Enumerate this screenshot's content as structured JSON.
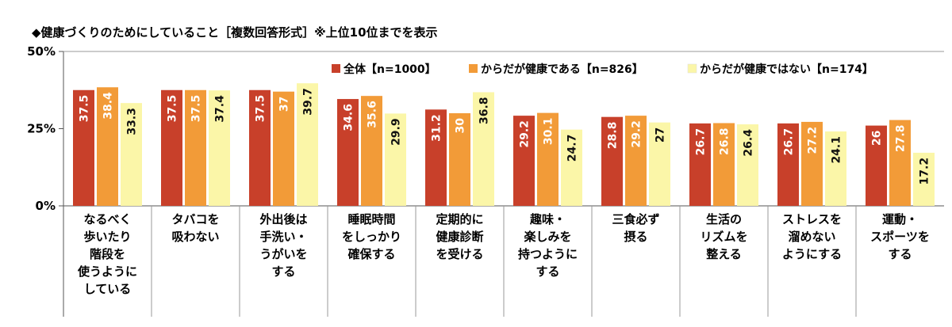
{
  "chart_data": {
    "type": "bar",
    "title": "◆健康づくりのためにしていること［複数回答形式］※上位10位までを表示",
    "xlabel": "",
    "ylabel": "",
    "ylim": [
      0,
      50
    ],
    "yticks": [
      "0%",
      "25%",
      "50%"
    ],
    "grid": false,
    "legend_position": "top-right",
    "categories": [
      [
        "なるべく",
        "歩いたり",
        "階段を",
        "使うように",
        "している"
      ],
      [
        "タバコを",
        "吸わない"
      ],
      [
        "外出後は",
        "手洗い・",
        "うがいを",
        "する"
      ],
      [
        "睡眠時間",
        "をしっかり",
        "確保する"
      ],
      [
        "定期的に",
        "健康診断",
        "を受ける"
      ],
      [
        "趣味・",
        "楽しみを",
        "持つように",
        "する"
      ],
      [
        "三食必ず",
        "摂る"
      ],
      [
        "生活の",
        "リズムを",
        "整える"
      ],
      [
        "ストレスを",
        "溜めない",
        "ようにする"
      ],
      [
        "運動・",
        "スポーツを",
        "する"
      ]
    ],
    "series": [
      {
        "name": "全体【n=1000】",
        "color": "#c8402a",
        "values": [
          37.5,
          37.5,
          37.5,
          34.6,
          31.2,
          29.2,
          28.8,
          26.7,
          26.7,
          26.0
        ]
      },
      {
        "name": "からだが健康である【n=826】",
        "color": "#f29b38",
        "values": [
          38.4,
          37.5,
          37.0,
          35.6,
          30.0,
          30.1,
          29.2,
          26.8,
          27.2,
          27.8
        ]
      },
      {
        "name": "からだが健康ではない【n=174】",
        "color": "#fbf6a8",
        "values": [
          33.3,
          37.4,
          39.7,
          29.9,
          36.8,
          24.7,
          27.0,
          26.4,
          24.1,
          17.2
        ]
      }
    ]
  }
}
